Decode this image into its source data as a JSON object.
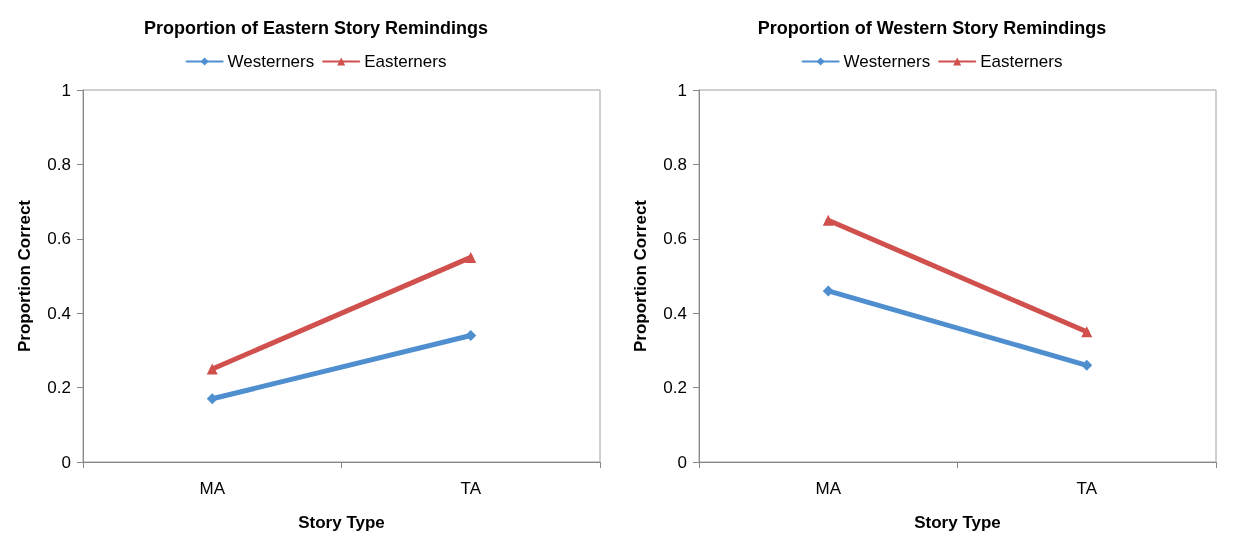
{
  "chart_data": [
    {
      "type": "line",
      "title": "Proportion of Eastern Story Remindings",
      "xlabel": "Story Type",
      "ylabel": "Proportion Correct",
      "categories": [
        "MA",
        "TA"
      ],
      "series": [
        {
          "name": "Westerners",
          "color": "#4f8fd0",
          "values": [
            0.17,
            0.34
          ],
          "marker": "diamond"
        },
        {
          "name": "Easterners",
          "color": "#d0504d",
          "values": [
            0.25,
            0.55
          ],
          "marker": "triangle"
        }
      ],
      "ylim": [
        0,
        1
      ],
      "yticks": [
        0,
        0.2,
        0.4,
        0.6,
        0.8,
        1
      ],
      "grid": false,
      "legend": "top"
    },
    {
      "type": "line",
      "title": "Proportion of Western Story Remindings",
      "xlabel": "Story Type",
      "ylabel": "Proportion Correct",
      "categories": [
        "MA",
        "TA"
      ],
      "series": [
        {
          "name": "Westerners",
          "color": "#4f8fd0",
          "values": [
            0.46,
            0.26
          ],
          "marker": "diamond"
        },
        {
          "name": "Easterners",
          "color": "#d0504d",
          "values": [
            0.65,
            0.35
          ],
          "marker": "triangle"
        }
      ],
      "ylim": [
        0,
        1
      ],
      "yticks": [
        0,
        0.2,
        0.4,
        0.6,
        0.8,
        1
      ],
      "grid": false,
      "legend": "top"
    }
  ]
}
